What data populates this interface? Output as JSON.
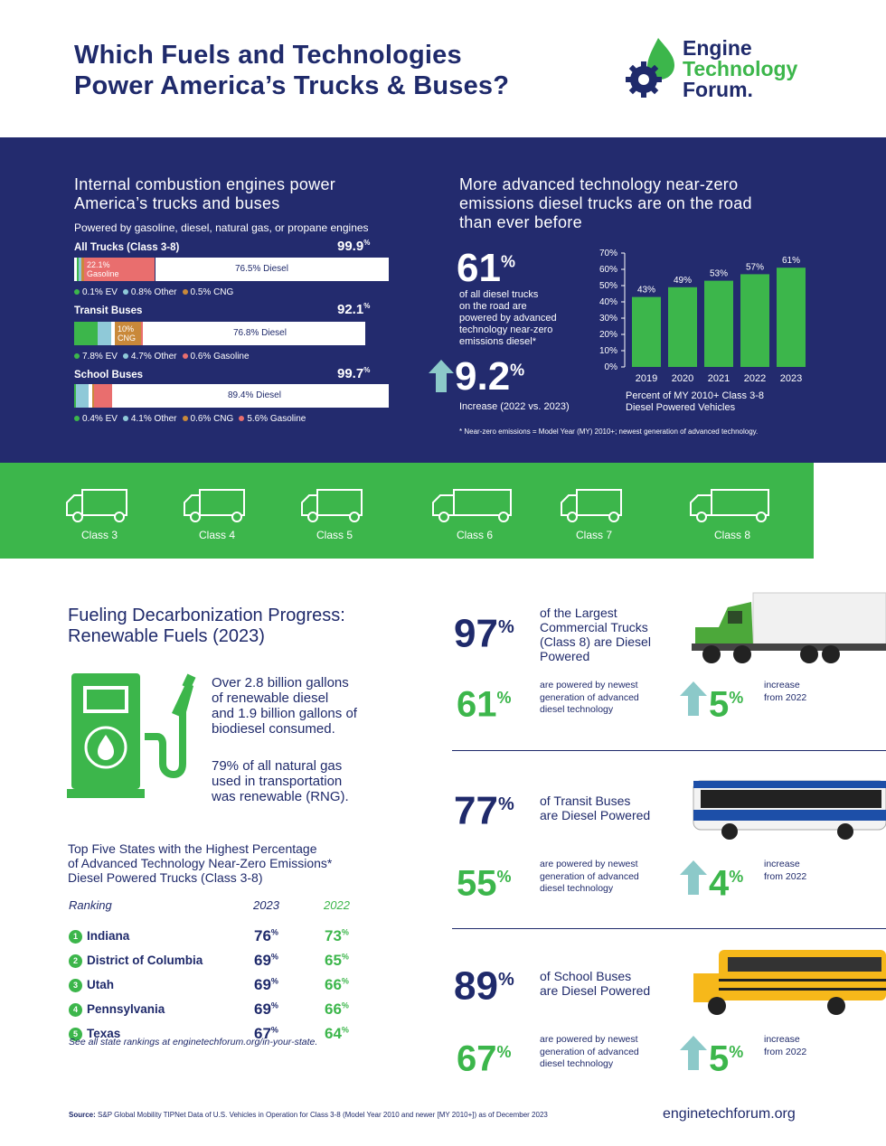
{
  "header": {
    "title_line1": "Which Fuels and Technologies",
    "title_line2": "Power America’s Trucks & Buses?",
    "logo_line1": "Engine",
    "logo_line2": "Technology",
    "logo_line3": "Forum."
  },
  "ice": {
    "heading_line1": "Internal combustion engines power",
    "heading_line2": "America’s trucks and buses",
    "subheading": "Powered by gasoline, diesel, natural gas, or propane engines",
    "rows": [
      {
        "label": "All Trucks (Class 3-8)",
        "total": "99.9",
        "seg_label": "22.1%",
        "seg_label2": "Gasoline",
        "diesel": "76.5% Diesel",
        "legend": [
          "0.1% EV",
          "0.8% Other",
          "0.5% CNG"
        ]
      },
      {
        "label": "Transit Buses",
        "total": "92.1",
        "seg_label": "10%",
        "seg_label2": "CNG",
        "diesel": "76.8% Diesel",
        "legend": [
          "7.8% EV",
          "4.7% Other",
          "0.6% Gasoline"
        ]
      },
      {
        "label": "School Buses",
        "total": "99.7",
        "diesel": "89.4% Diesel",
        "legend": [
          "0.4% EV",
          "4.1% Other",
          "0.6% CNG",
          "5.6% Gasoline"
        ]
      }
    ],
    "pct_sign": "%"
  },
  "nz": {
    "heading_line1": "More advanced technology near-zero",
    "heading_line2": "emissions diesel trucks are on the road",
    "heading_line3": "than ever before",
    "big_value": "61",
    "pct_sign": "%",
    "desc_line1": "of all diesel trucks",
    "desc_line2": "on the road are",
    "desc_line3": "powered by advanced",
    "desc_line4": "technology near-zero",
    "desc_line5": "emissions diesel*",
    "increase_value": "9.2",
    "increase_desc": "Increase (2022 vs. 2023)",
    "footnote": "* Near-zero emissions = Model Year (MY) 2010+; newest generation of advanced technology."
  },
  "chart_data": {
    "type": "bar",
    "categories": [
      "2019",
      "2020",
      "2021",
      "2022",
      "2023"
    ],
    "values": [
      43,
      49,
      53,
      57,
      61
    ],
    "data_labels": [
      "43%",
      "49%",
      "53%",
      "57%",
      "61%"
    ],
    "yticks": [
      "0%",
      "10%",
      "20%",
      "30%",
      "40%",
      "50%",
      "60%",
      "70%"
    ],
    "ylim": [
      0,
      70
    ],
    "caption_line1": "Percent of MY 2010+ Class 3-8",
    "caption_line2": "Diesel Powered Vehicles",
    "bar_color": "#3cb64b"
  },
  "classes": [
    "Class 3",
    "Class 4",
    "Class 5",
    "Class 6",
    "Class 7",
    "Class 8"
  ],
  "renewable": {
    "heading_line1": "Fueling Decarbonization Progress:",
    "heading_line2": "Renewable Fuels (2023)",
    "p1_line1": "Over 2.8 billion gallons",
    "p1_line2": "of renewable diesel",
    "p1_line3": "and 1.9 billion gallons of",
    "p1_line4": "biodiesel consumed.",
    "p2_line1": "79% of all natural gas",
    "p2_line2": "used in transportation",
    "p2_line3": "was renewable (RNG)."
  },
  "states": {
    "heading_line1": "Top Five States with the Highest Percentage",
    "heading_line2": "of Advanced Technology Near-Zero Emissions*",
    "heading_line3": "Diesel Powered Trucks (Class 3-8)",
    "col_rank": "Ranking",
    "col_2023": "2023",
    "col_2022": "2022",
    "rows": [
      {
        "n": "1",
        "name": "Indiana",
        "v2023": "76",
        "v2022": "73"
      },
      {
        "n": "2",
        "name": "District of Columbia",
        "v2023": "69",
        "v2022": "65"
      },
      {
        "n": "3",
        "name": "Utah",
        "v2023": "69",
        "v2022": "66"
      },
      {
        "n": "4",
        "name": "Pennsylvania",
        "v2023": "69",
        "v2022": "66"
      },
      {
        "n": "5",
        "name": "Texas",
        "v2023": "67",
        "v2022": "64"
      }
    ],
    "pct_sign": "%",
    "note": "See all state rankings at enginetechforum.org/in-your-state."
  },
  "vehicles": [
    {
      "big": "97",
      "desc_line1": "of the Largest",
      "desc_line2": "Commercial Trucks",
      "desc_line3": "(Class 8) are Diesel",
      "desc_line4": "Powered",
      "adv": "61",
      "adv_line1": "are powered by newest",
      "adv_line2": "generation of advanced",
      "adv_line3": "diesel technology",
      "inc": "5",
      "inc_line1": "increase",
      "inc_line2": "from 2022"
    },
    {
      "big": "77",
      "desc_line1": "of Transit Buses",
      "desc_line2": "are Diesel Powered",
      "adv": "55",
      "adv_line1": "are powered by newest",
      "adv_line2": "generation of advanced",
      "adv_line3": "diesel technology",
      "inc": "4",
      "inc_line1": "increase",
      "inc_line2": "from 2022"
    },
    {
      "big": "89",
      "desc_line1": "of School Buses",
      "desc_line2": "are Diesel Powered",
      "adv": "67",
      "adv_line1": "are powered by newest",
      "adv_line2": "generation of advanced",
      "adv_line3": "diesel technology",
      "inc": "5",
      "inc_line1": "increase",
      "inc_line2": "from 2022"
    }
  ],
  "footer": {
    "source_label": "Source:",
    "source_text": "S&P Global Mobility TIPNet Data of U.S. Vehicles in Operation for Class 3-8 (Model Year 2010 and newer [MY 2010+]) as of December 2023",
    "url": "enginetechforum.org"
  },
  "colors": {
    "navy": "#1f2a6b",
    "green": "#3cb64b",
    "ev": "#3cb64b",
    "other": "#8fc9d8",
    "cng": "#c9893a",
    "gasoline": "#e96e6e",
    "arrow": "#8cc9c9"
  }
}
